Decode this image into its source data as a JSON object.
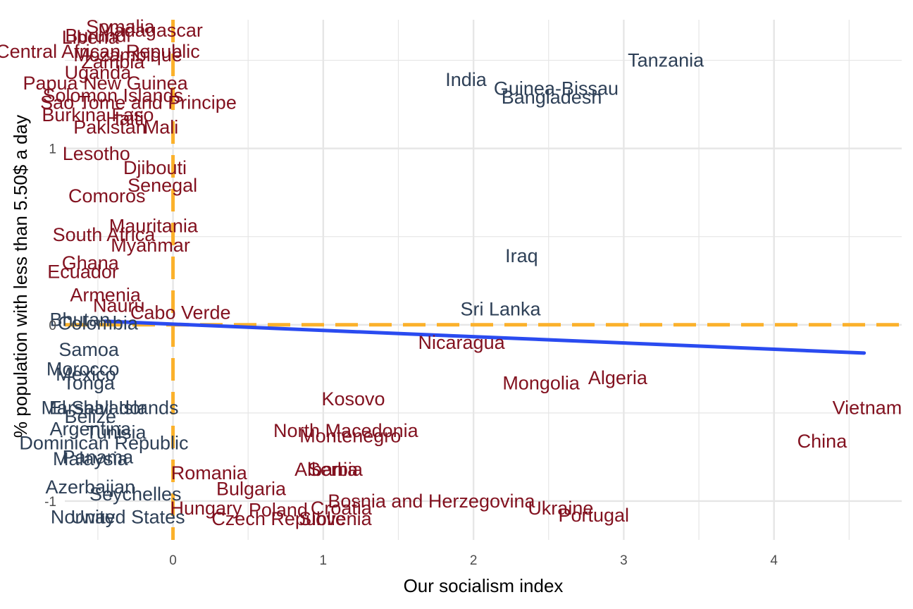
{
  "chart_data": {
    "type": "scatter",
    "title": "",
    "xlabel": "Our socialism index",
    "ylabel": "% population with less than 5.50$ a day",
    "xlim": [
      -0.72,
      4.85
    ],
    "ylim": [
      -1.22,
      1.73
    ],
    "x_ticks": [
      "0",
      "1",
      "2",
      "3",
      "4"
    ],
    "y_ticks": [
      "-1",
      "0",
      "1"
    ],
    "grid": true,
    "colors": {
      "below": "#2e4057",
      "above": "#82111f",
      "reference_line": "#fbb12b",
      "trend_line": "#2a4bf0",
      "grid": "#e6e6e6"
    },
    "reference_lines": {
      "x": 0,
      "y": 0
    },
    "trend_line": {
      "x": [
        -0.45,
        4.6
      ],
      "y": [
        0.02,
        -0.16
      ]
    },
    "points": [
      {
        "label": "Tanzania",
        "x": 3.28,
        "y": 1.5,
        "group": "below"
      },
      {
        "label": "India",
        "x": 1.95,
        "y": 1.39,
        "group": "below"
      },
      {
        "label": "Guinea-Bissau",
        "x": 2.55,
        "y": 1.34,
        "group": "below"
      },
      {
        "label": "Bangladesh",
        "x": 2.52,
        "y": 1.29,
        "group": "below"
      },
      {
        "label": "Iraq",
        "x": 2.32,
        "y": 0.39,
        "group": "below"
      },
      {
        "label": "Sri Lanka",
        "x": 2.18,
        "y": 0.09,
        "group": "below"
      },
      {
        "label": "Nicaragua",
        "x": 1.92,
        "y": -0.1,
        "group": "above"
      },
      {
        "label": "Mongolia",
        "x": 2.45,
        "y": -0.33,
        "group": "above"
      },
      {
        "label": "Algeria",
        "x": 2.96,
        "y": -0.3,
        "group": "above"
      },
      {
        "label": "Kosovo",
        "x": 1.2,
        "y": -0.42,
        "group": "above"
      },
      {
        "label": "Vietnam",
        "x": 4.62,
        "y": -0.47,
        "group": "above"
      },
      {
        "label": "China",
        "x": 4.32,
        "y": -0.66,
        "group": "above"
      },
      {
        "label": "North Macedonia",
        "x": 1.15,
        "y": -0.6,
        "group": "above"
      },
      {
        "label": "Montenegro",
        "x": 1.18,
        "y": -0.63,
        "group": "above"
      },
      {
        "label": "Romania",
        "x": 0.24,
        "y": -0.84,
        "group": "above"
      },
      {
        "label": "Albania",
        "x": 1.02,
        "y": -0.82,
        "group": "above"
      },
      {
        "label": "Serbia",
        "x": 1.08,
        "y": -0.82,
        "group": "above"
      },
      {
        "label": "Bulgaria",
        "x": 0.52,
        "y": -0.93,
        "group": "above"
      },
      {
        "label": "Bosnia and Herzegovina",
        "x": 1.72,
        "y": -1.0,
        "group": "above"
      },
      {
        "label": "Croatia",
        "x": 1.12,
        "y": -1.04,
        "group": "above"
      },
      {
        "label": "Ukraine",
        "x": 2.58,
        "y": -1.04,
        "group": "above"
      },
      {
        "label": "Portugal",
        "x": 2.8,
        "y": -1.08,
        "group": "above"
      },
      {
        "label": "Hungary",
        "x": 0.22,
        "y": -1.04,
        "group": "above"
      },
      {
        "label": "Poland",
        "x": 0.7,
        "y": -1.05,
        "group": "above"
      },
      {
        "label": "Slovenia",
        "x": 1.08,
        "y": -1.1,
        "group": "above"
      },
      {
        "label": "Czech Republic",
        "x": 0.7,
        "y": -1.1,
        "group": "above"
      },
      {
        "label": "Cabo Verde",
        "x": 0.05,
        "y": 0.07,
        "group": "above"
      },
      {
        "label": "Nauru",
        "x": -0.36,
        "y": 0.11,
        "group": "above"
      },
      {
        "label": "Myanmar",
        "x": -0.15,
        "y": 0.45,
        "group": "above"
      },
      {
        "label": "Mauritania",
        "x": -0.13,
        "y": 0.56,
        "group": "above"
      },
      {
        "label": "South Africa",
        "x": -0.46,
        "y": 0.51,
        "group": "above"
      },
      {
        "label": "Djibouti",
        "x": -0.12,
        "y": 0.89,
        "group": "above"
      },
      {
        "label": "Senegal",
        "x": -0.07,
        "y": 0.79,
        "group": "above"
      },
      {
        "label": "Comoros",
        "x": -0.44,
        "y": 0.73,
        "group": "above"
      },
      {
        "label": "Lesotho",
        "x": -0.51,
        "y": 0.97,
        "group": "above"
      },
      {
        "label": "Madagascar",
        "x": -0.15,
        "y": 1.67,
        "group": "above"
      },
      {
        "label": "Somalia",
        "x": -0.35,
        "y": 1.69,
        "group": "above"
      },
      {
        "label": "Liberia",
        "x": -0.55,
        "y": 1.63,
        "group": "above"
      },
      {
        "label": "Burundi",
        "x": -0.5,
        "y": 1.64,
        "group": "above"
      },
      {
        "label": "Central African Republic",
        "x": -0.5,
        "y": 1.55,
        "group": "above"
      },
      {
        "label": "Mozambique",
        "x": -0.3,
        "y": 1.53,
        "group": "above"
      },
      {
        "label": "Zambia",
        "x": -0.4,
        "y": 1.49,
        "group": "above"
      },
      {
        "label": "Uganda",
        "x": -0.5,
        "y": 1.43,
        "group": "above"
      },
      {
        "label": "Papua New Guinea",
        "x": -0.45,
        "y": 1.37,
        "group": "above"
      },
      {
        "label": "Solomon Islands",
        "x": -0.4,
        "y": 1.3,
        "group": "above"
      },
      {
        "label": "Sao Tome and Principe",
        "x": -0.23,
        "y": 1.26,
        "group": "above"
      },
      {
        "label": "Burkina Faso",
        "x": -0.5,
        "y": 1.19,
        "group": "above"
      },
      {
        "label": "Haiti",
        "x": -0.32,
        "y": 1.17,
        "group": "above"
      },
      {
        "label": "Pakistan",
        "x": -0.42,
        "y": 1.12,
        "group": "above"
      },
      {
        "label": "Mali",
        "x": -0.08,
        "y": 1.12,
        "group": "above"
      },
      {
        "label": "Ghana",
        "x": -0.55,
        "y": 0.35,
        "group": "above"
      },
      {
        "label": "Armenia",
        "x": -0.45,
        "y": 0.17,
        "group": "above"
      },
      {
        "label": "Ecuador",
        "x": -0.6,
        "y": 0.3,
        "group": "above"
      },
      {
        "label": "Bhutan",
        "x": -0.62,
        "y": 0.03,
        "group": "below"
      },
      {
        "label": "Colombia",
        "x": -0.5,
        "y": 0.01,
        "group": "below"
      },
      {
        "label": "Samoa",
        "x": -0.56,
        "y": -0.14,
        "group": "below"
      },
      {
        "label": "Morocco",
        "x": -0.6,
        "y": -0.25,
        "group": "below"
      },
      {
        "label": "Mexico",
        "x": -0.58,
        "y": -0.28,
        "group": "below"
      },
      {
        "label": "Tonga",
        "x": -0.56,
        "y": -0.33,
        "group": "below"
      },
      {
        "label": "El Salvador",
        "x": -0.5,
        "y": -0.47,
        "group": "below"
      },
      {
        "label": "Marshall Islands",
        "x": -0.42,
        "y": -0.47,
        "group": "below"
      },
      {
        "label": "Belize",
        "x": -0.55,
        "y": -0.52,
        "group": "below"
      },
      {
        "label": "Argentina",
        "x": -0.55,
        "y": -0.59,
        "group": "below"
      },
      {
        "label": "Tunisia",
        "x": -0.38,
        "y": -0.61,
        "group": "below"
      },
      {
        "label": "Dominican Republic",
        "x": -0.46,
        "y": -0.67,
        "group": "below"
      },
      {
        "label": "Panama",
        "x": -0.5,
        "y": -0.75,
        "group": "below"
      },
      {
        "label": "Malaysia",
        "x": -0.55,
        "y": -0.76,
        "group": "below"
      },
      {
        "label": "Azerbaijan",
        "x": -0.55,
        "y": -0.92,
        "group": "below"
      },
      {
        "label": "Seychelles",
        "x": -0.25,
        "y": -0.96,
        "group": "below"
      },
      {
        "label": "United States",
        "x": -0.3,
        "y": -1.09,
        "group": "below"
      },
      {
        "label": "Norway",
        "x": -0.6,
        "y": -1.09,
        "group": "below"
      }
    ]
  }
}
